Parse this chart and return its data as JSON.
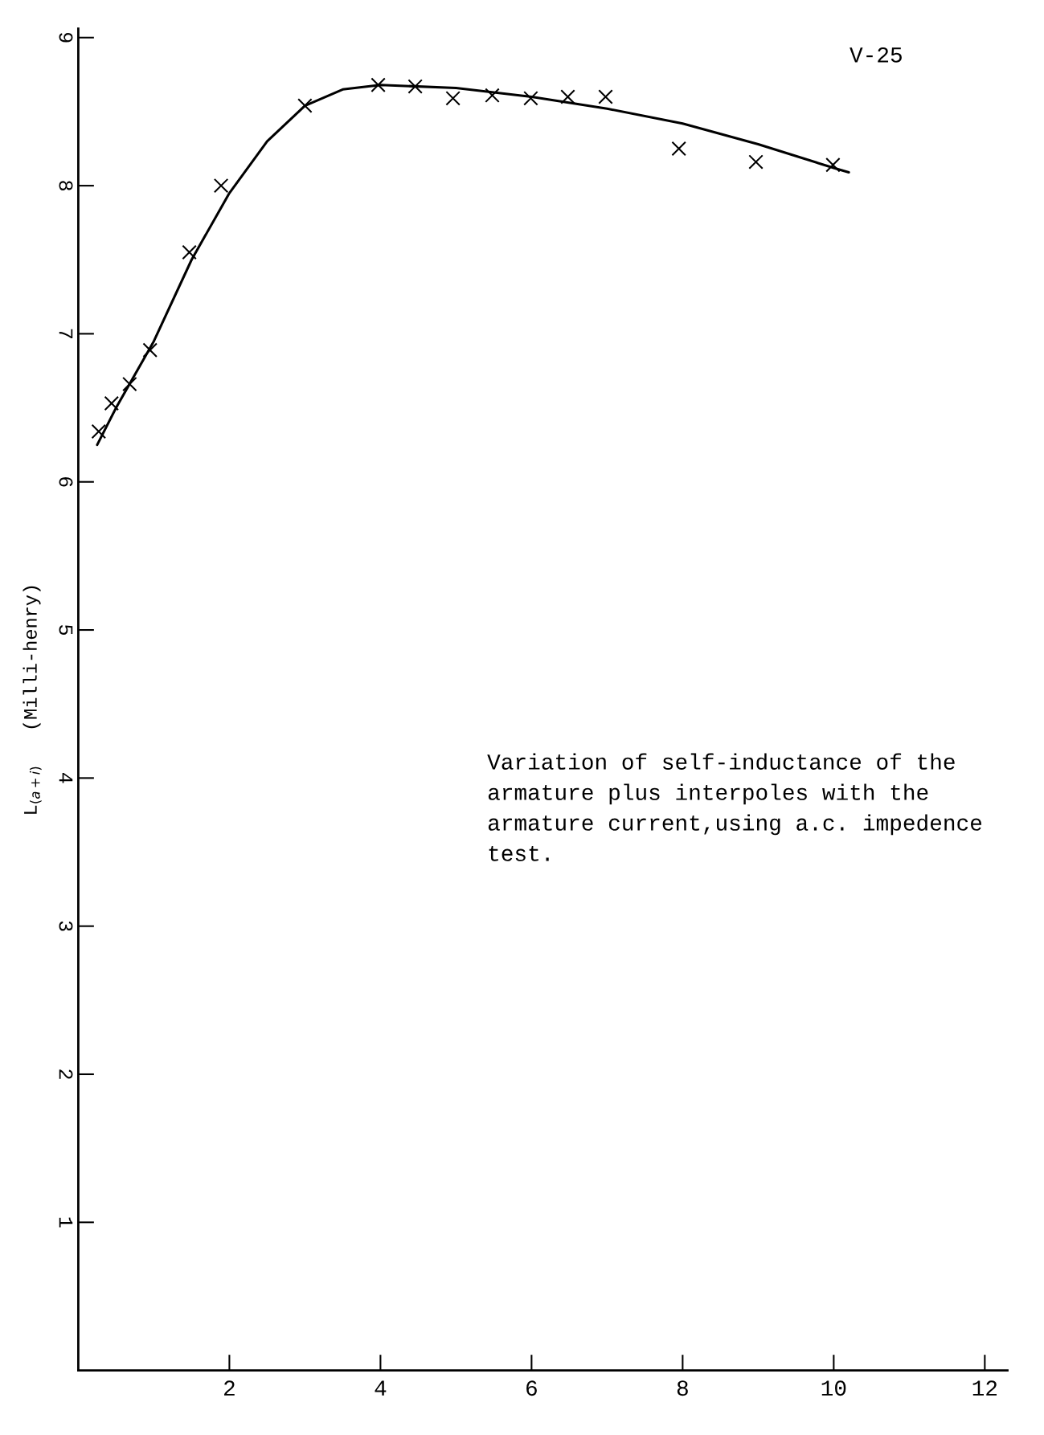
{
  "chart_data": {
    "type": "scatter",
    "ylabel": "L$_{(a+i)}$   (Milli-henry)",
    "annotations": [
      "V-25",
      "Variation of self-inductance of the armature plus interpoles with the armature current,using a.c. impedence test."
    ],
    "series": [
      {
        "color": "#000000",
        "marker": "cross",
        "x": [
          0.27,
          0.44,
          0.68,
          0.95,
          1.47,
          1.89,
          3.0,
          3.97,
          4.46,
          4.96,
          5.48,
          5.99,
          6.48,
          6.98,
          7.95,
          8.97,
          9.99
        ],
        "values": [
          6.34,
          6.53,
          6.66,
          6.89,
          7.55,
          8.0,
          8.54,
          8.68,
          8.67,
          8.59,
          8.61,
          8.59,
          8.6,
          8.6,
          8.25,
          8.16,
          8.14
        ]
      },
      {
        "type": "line",
        "color": "#000000",
        "x": [
          0.25,
          0.5,
          1,
          1.5,
          2,
          2.5,
          3,
          3.5,
          4,
          5,
          6,
          7,
          8,
          9,
          10,
          10.2
        ],
        "values": [
          6.25,
          6.5,
          6.95,
          7.5,
          7.95,
          8.3,
          8.54,
          8.65,
          8.68,
          8.66,
          8.6,
          8.52,
          8.42,
          8.28,
          8.12,
          8.09
        ]
      }
    ],
    "xlim": [
      0,
      12.3
    ],
    "xticks": [
      2,
      4,
      6,
      8,
      10,
      12
    ],
    "ylim": [
      0,
      9.06
    ],
    "yticks": [
      1,
      2,
      3,
      4,
      5,
      6,
      7,
      8,
      9
    ],
    "grid": false
  }
}
